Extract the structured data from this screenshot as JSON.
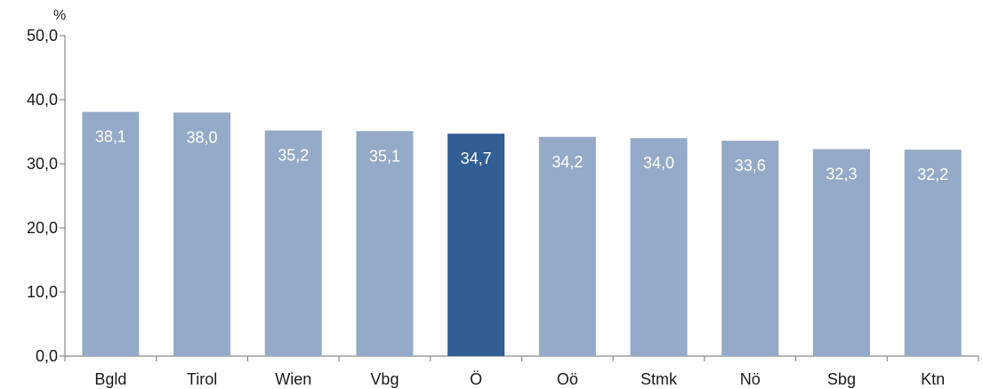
{
  "chart_data": {
    "type": "bar",
    "unit": "%",
    "categories": [
      "Bgld",
      "Tirol",
      "Wien",
      "Vbg",
      "Ö",
      "Oö",
      "Stmk",
      "Nö",
      "Sbg",
      "Ktn"
    ],
    "values": [
      38.1,
      38.0,
      35.2,
      35.1,
      34.7,
      34.2,
      34.0,
      33.6,
      32.3,
      32.2
    ],
    "value_labels": [
      "38,1",
      "38,0",
      "35,2",
      "35,1",
      "34,7",
      "34,2",
      "34,0",
      "33,6",
      "32,3",
      "32,2"
    ],
    "y_ticks": [
      0,
      10,
      20,
      30,
      40,
      50
    ],
    "y_tick_labels": [
      "0,0",
      "10,0",
      "20,0",
      "30,0",
      "40,0",
      "50,0"
    ],
    "ylim": [
      0,
      50
    ],
    "grid": false,
    "legend": "none",
    "highlight_category": "Ö",
    "colors": {
      "bar": "#95aac8",
      "highlight": "#335d95",
      "axis": "#8c8c8c",
      "label_text": "#ffffff",
      "text": "#1a1a1a"
    }
  }
}
